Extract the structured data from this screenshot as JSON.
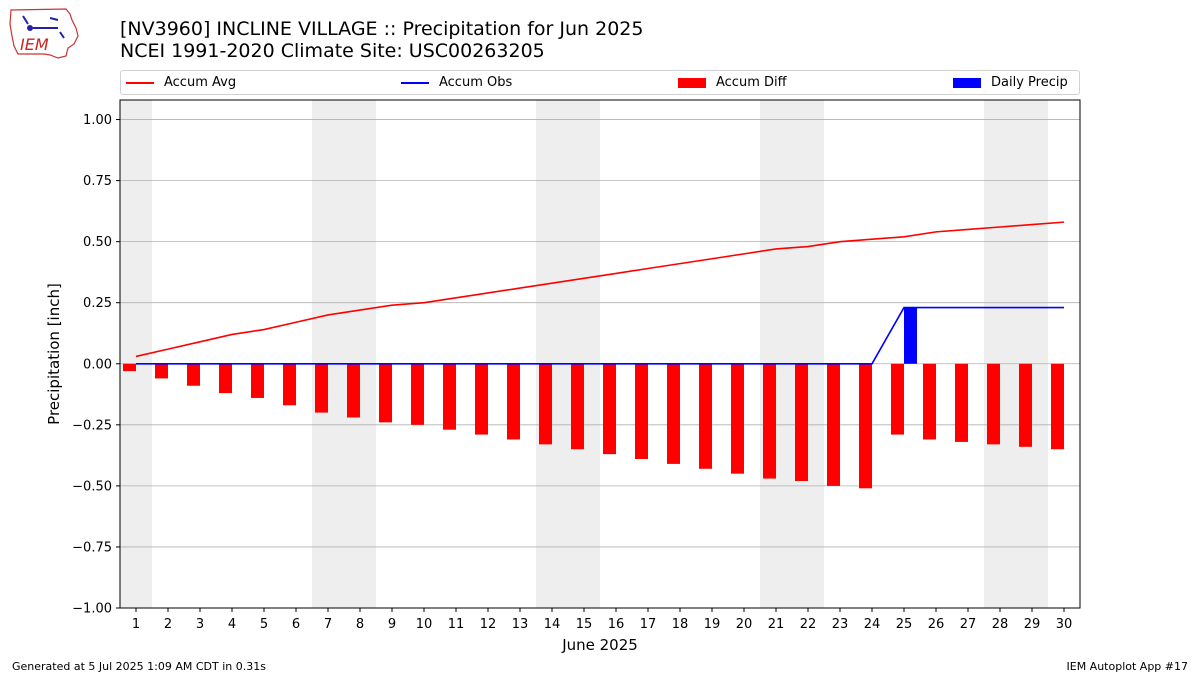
{
  "title_line1": "[NV3960] INCLINE VILLAGE :: Precipitation for Jun 2025",
  "title_line2": "NCEI 1991-2020 Climate Site: USC00263205",
  "logo_text": "IEM",
  "footer_left": "Generated at 5 Jul 2025 1:09 AM CDT in 0.31s",
  "footer_right": "IEM Autoplot App #17",
  "colors": {
    "accum_avg": "#ff0000",
    "accum_obs": "#0000ff",
    "accum_diff": "#ff0000",
    "daily_precip": "#0000ff",
    "weekend_shade": "#eeeeee",
    "grid": "#b0b0b0"
  },
  "chart_data": {
    "type": "bar",
    "xlabel": "June 2025",
    "ylabel": "Precipitation [inch]",
    "ylim": [
      -1.0,
      1.08
    ],
    "yticks": [
      1.0,
      0.75,
      0.5,
      0.25,
      0.0,
      -0.25,
      -0.5,
      -0.75,
      -1.0
    ],
    "ytick_labels": [
      "1.00",
      "0.75",
      "0.50",
      "0.25",
      "0.00",
      "−0.25",
      "−0.50",
      "−0.75",
      "−1.00"
    ],
    "grid": "horizontal",
    "legend_position": "top",
    "days": [
      1,
      2,
      3,
      4,
      5,
      6,
      7,
      8,
      9,
      10,
      11,
      12,
      13,
      14,
      15,
      16,
      17,
      18,
      19,
      20,
      21,
      22,
      23,
      24,
      25,
      26,
      27,
      28,
      29,
      30
    ],
    "shaded_days": [
      [
        1,
        1
      ],
      [
        7,
        8
      ],
      [
        14,
        15
      ],
      [
        21,
        22
      ],
      [
        28,
        29
      ]
    ],
    "series": [
      {
        "name": "Accum Avg",
        "type": "line",
        "values": [
          0.03,
          0.06,
          0.09,
          0.12,
          0.14,
          0.17,
          0.2,
          0.22,
          0.24,
          0.25,
          0.27,
          0.29,
          0.31,
          0.33,
          0.35,
          0.37,
          0.39,
          0.41,
          0.43,
          0.45,
          0.47,
          0.48,
          0.5,
          0.51,
          0.52,
          0.54,
          0.55,
          0.56,
          0.57,
          0.58
        ]
      },
      {
        "name": "Accum Obs",
        "type": "line",
        "values": [
          0,
          0,
          0,
          0,
          0,
          0,
          0,
          0,
          0,
          0,
          0,
          0,
          0,
          0,
          0,
          0,
          0,
          0,
          0,
          0,
          0,
          0,
          0,
          0,
          0.23,
          0.23,
          0.23,
          0.23,
          0.23,
          0.23
        ]
      },
      {
        "name": "Accum Diff",
        "type": "bar",
        "values": [
          -0.03,
          -0.06,
          -0.09,
          -0.12,
          -0.14,
          -0.17,
          -0.2,
          -0.22,
          -0.24,
          -0.25,
          -0.27,
          -0.29,
          -0.31,
          -0.33,
          -0.35,
          -0.37,
          -0.39,
          -0.41,
          -0.43,
          -0.45,
          -0.47,
          -0.48,
          -0.5,
          -0.51,
          -0.29,
          -0.31,
          -0.32,
          -0.33,
          -0.34,
          -0.35
        ]
      },
      {
        "name": "Daily Precip",
        "type": "bar",
        "values": [
          0,
          0,
          0,
          0,
          0,
          0,
          0,
          0,
          0,
          0,
          0,
          0,
          0,
          0,
          0,
          0,
          0,
          0,
          0,
          0,
          0,
          0,
          0,
          0,
          0.23,
          0,
          0,
          0,
          0,
          0
        ]
      }
    ]
  }
}
